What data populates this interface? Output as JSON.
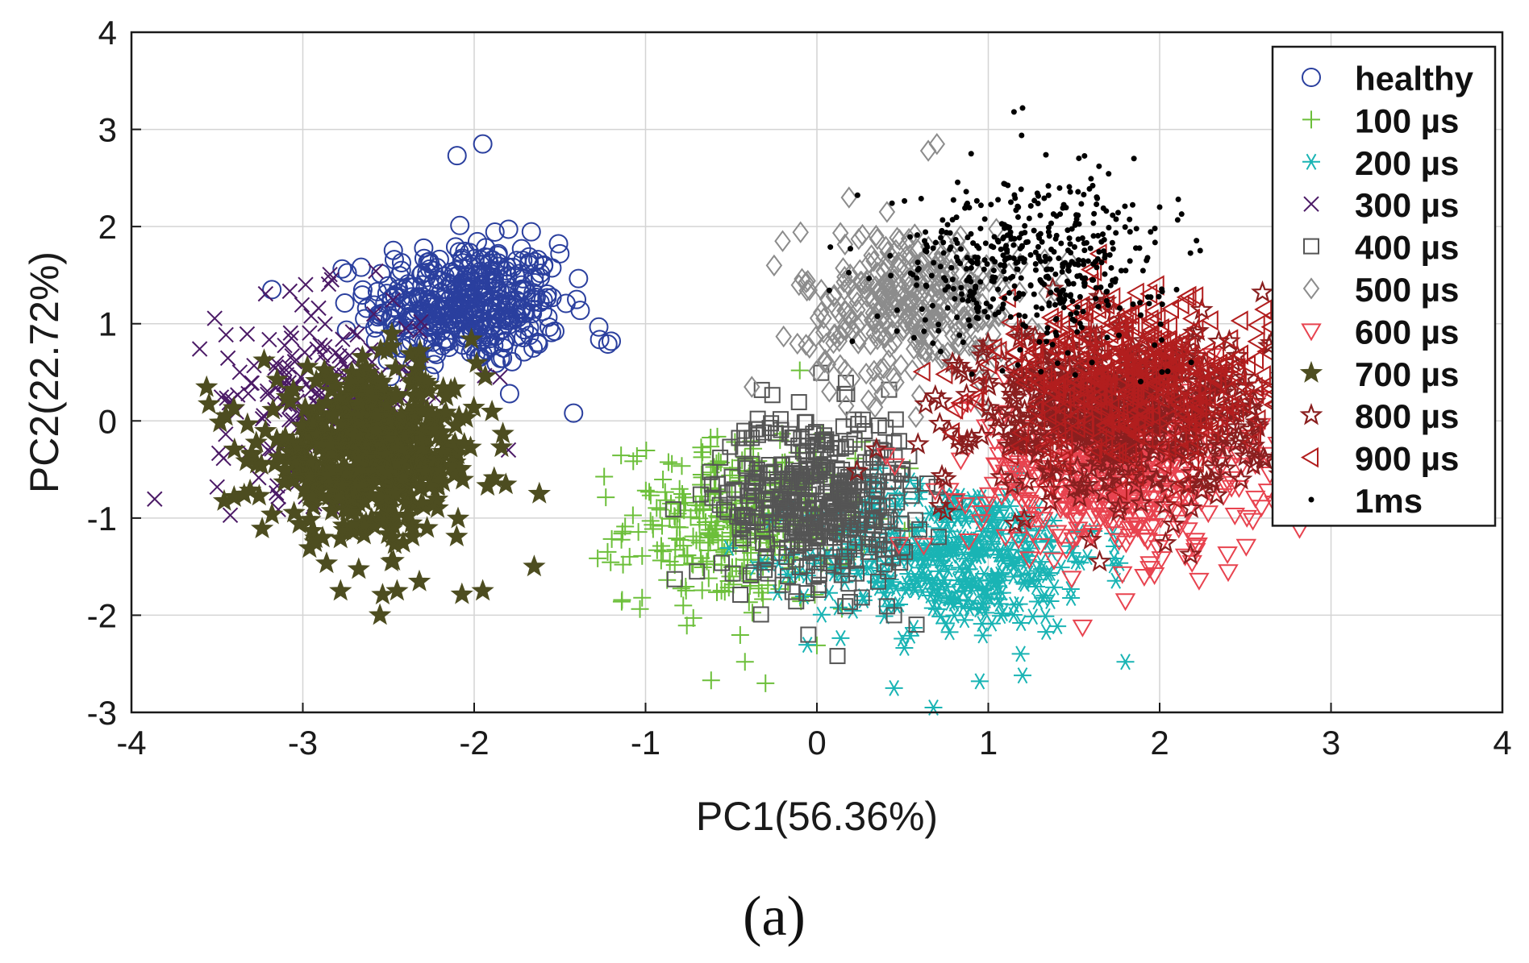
{
  "chart_data": {
    "type": "scatter",
    "title": "",
    "xlabel": "PC1(56.36%)",
    "ylabel": "PC2(22.72%)",
    "caption": "(a)",
    "xlim": [
      -4,
      4
    ],
    "ylim": [
      -3,
      4
    ],
    "xticks": [
      -4,
      -3,
      -2,
      -1,
      0,
      1,
      2,
      3,
      4
    ],
    "yticks": [
      -3,
      -2,
      -1,
      0,
      1,
      2,
      3,
      4
    ],
    "grid": true,
    "legend_position": "top-right",
    "series": [
      {
        "name": "healthy",
        "marker": "circle",
        "color": "#2a3f9e",
        "n": 420,
        "center": [
          -2.05,
          1.2
        ],
        "spread": [
          0.28,
          0.32
        ],
        "outliers": [
          [
            -1.95,
            2.85
          ],
          [
            -2.1,
            2.73
          ],
          [
            -1.2,
            0.82
          ],
          [
            -1.22,
            0.79
          ],
          [
            -1.5,
            1.72
          ],
          [
            -1.42,
            0.08
          ]
        ]
      },
      {
        "name": "100 µs",
        "marker": "plus",
        "color": "#6cbf3a",
        "n": 340,
        "center": [
          -0.45,
          -1.05
        ],
        "spread": [
          0.33,
          0.42
        ],
        "outliers": [
          [
            -1.02,
            -1.82
          ],
          [
            -0.42,
            -2.48
          ],
          [
            -0.3,
            -2.7
          ],
          [
            -0.78,
            -1.9
          ],
          [
            -0.1,
            0.52
          ]
        ]
      },
      {
        "name": "200 µs",
        "marker": "asterisk",
        "color": "#19b4b4",
        "n": 420,
        "center": [
          0.8,
          -1.4
        ],
        "spread": [
          0.42,
          0.38
        ],
        "outliers": [
          [
            0.68,
            -2.95
          ],
          [
            0.45,
            -2.75
          ],
          [
            1.8,
            -2.48
          ],
          [
            0.95,
            -2.68
          ],
          [
            1.2,
            -2.62
          ]
        ]
      },
      {
        "name": "300 µs",
        "marker": "x",
        "color": "#4b1a66",
        "n": 200,
        "center": [
          -2.9,
          0.25
        ],
        "spread": [
          0.3,
          0.5
        ],
        "outliers": [
          [
            -3.5,
            -0.68
          ],
          [
            -1.8,
            -0.3
          ],
          [
            -1.85,
            0.45
          ]
        ]
      },
      {
        "name": "400 µs",
        "marker": "square",
        "color": "#555555",
        "n": 420,
        "center": [
          0.0,
          -0.8
        ],
        "spread": [
          0.28,
          0.45
        ],
        "outliers": [
          [
            -0.7,
            -1.55
          ],
          [
            0.12,
            -2.42
          ],
          [
            -0.05,
            -2.2
          ],
          [
            0.45,
            -2.0
          ]
        ]
      },
      {
        "name": "500 µs",
        "marker": "diamond",
        "color": "#8c8c8c",
        "n": 340,
        "center": [
          0.55,
          1.2
        ],
        "spread": [
          0.32,
          0.4
        ],
        "outliers": [
          [
            0.7,
            2.85
          ],
          [
            0.65,
            2.78
          ],
          [
            -0.38,
            0.35
          ],
          [
            -0.25,
            1.6
          ],
          [
            -0.2,
            1.85
          ]
        ]
      },
      {
        "name": "600 µs",
        "marker": "triangle-down",
        "color": "#e8434f",
        "n": 460,
        "center": [
          1.75,
          -0.55
        ],
        "spread": [
          0.42,
          0.42
        ],
        "outliers": [
          [
            1.55,
            -2.12
          ],
          [
            1.8,
            -1.85
          ],
          [
            2.4,
            -1.55
          ],
          [
            2.7,
            -0.85
          ],
          [
            2.95,
            -0.95
          ]
        ]
      },
      {
        "name": "700 µs",
        "marker": "star",
        "color": "#4d4d20",
        "n": 560,
        "center": [
          -2.6,
          -0.35
        ],
        "spread": [
          0.32,
          0.42
        ],
        "outliers": [
          [
            -2.55,
            -2.0
          ],
          [
            -2.45,
            -1.75
          ],
          [
            -1.95,
            -1.75
          ],
          [
            -1.62,
            -0.75
          ],
          [
            -1.65,
            -1.5
          ],
          [
            -2.78,
            -1.75
          ]
        ]
      },
      {
        "name": "800 µs",
        "marker": "star-outline",
        "color": "#8a1f1f",
        "n": 520,
        "center": [
          1.75,
          0.1
        ],
        "spread": [
          0.42,
          0.42
        ],
        "outliers": [
          [
            2.6,
            1.32
          ],
          [
            2.65,
            0.8
          ],
          [
            2.7,
            -0.55
          ],
          [
            0.75,
            -0.6
          ],
          [
            1.65,
            -1.45
          ]
        ]
      },
      {
        "name": "900 µs",
        "marker": "triangle-left",
        "color": "#b21e1e",
        "n": 420,
        "center": [
          1.85,
          0.4
        ],
        "spread": [
          0.4,
          0.42
        ],
        "outliers": [
          [
            1.65,
            1.72
          ],
          [
            0.75,
            0.48
          ],
          [
            2.75,
            -0.85
          ]
        ]
      },
      {
        "name": "1ms",
        "marker": "dot",
        "color": "#000000",
        "n": 480,
        "center": [
          1.25,
          1.65
        ],
        "spread": [
          0.4,
          0.42
        ],
        "outliers": [
          [
            1.2,
            3.22
          ],
          [
            1.15,
            3.18
          ],
          [
            1.85,
            2.7
          ],
          [
            2.0,
            2.2
          ],
          [
            0.9,
            2.75
          ]
        ]
      }
    ]
  }
}
